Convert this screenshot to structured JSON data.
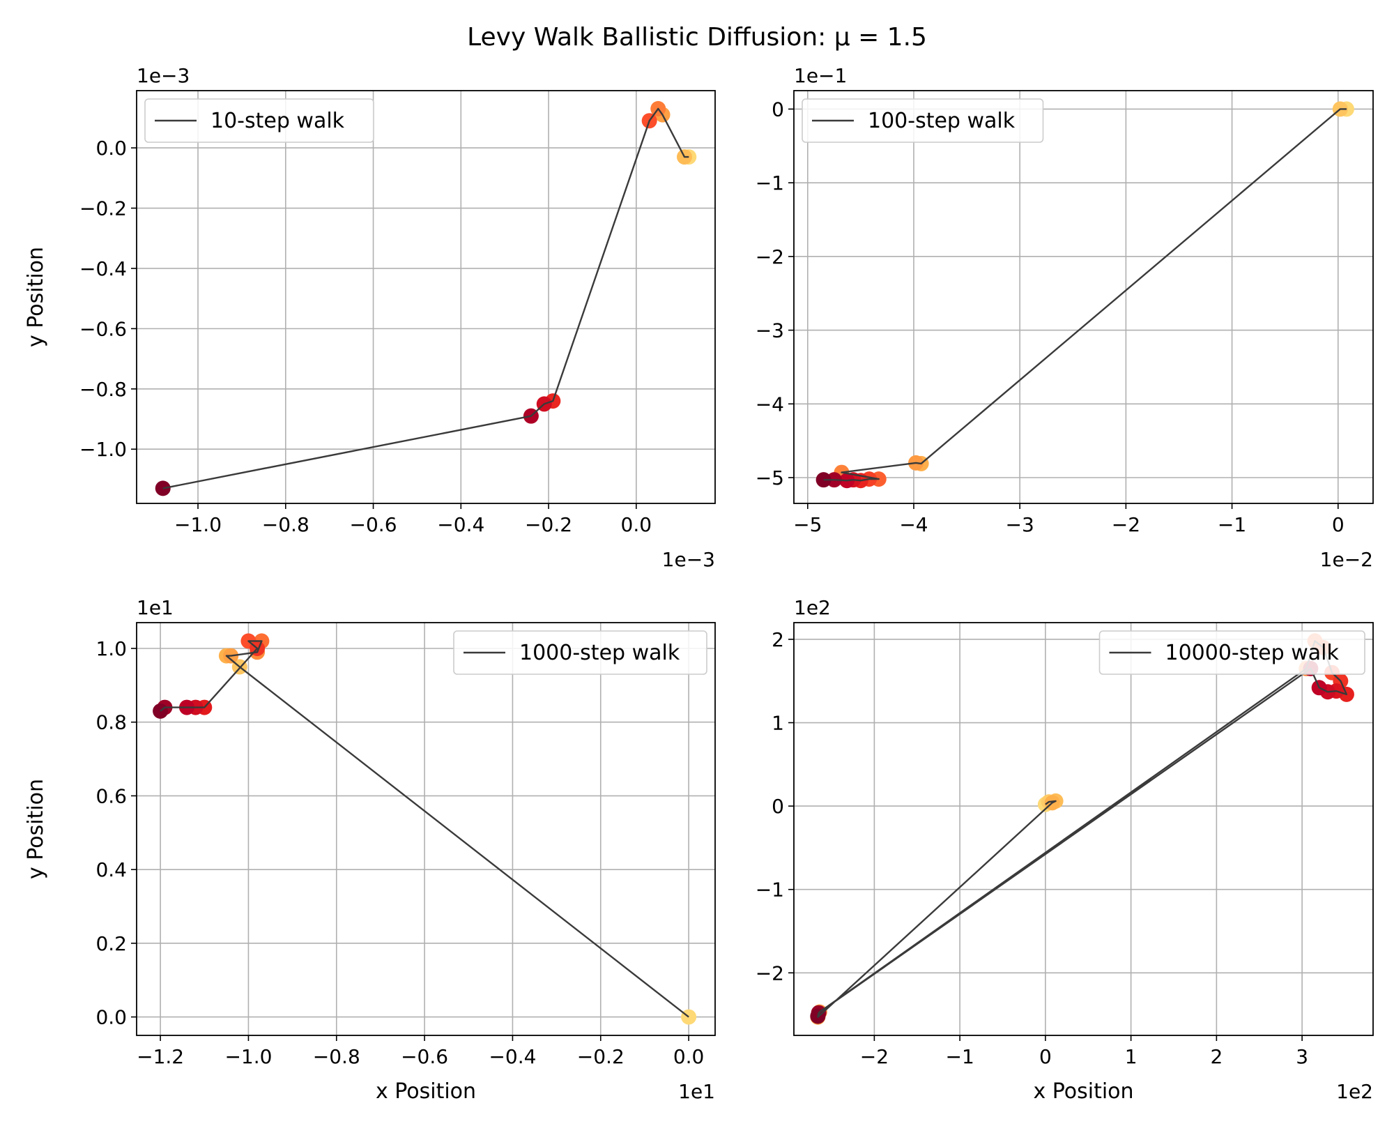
{
  "title": "Levy Walk Ballistic Diffusion: μ = 1.5",
  "colors": {
    "walk_line": "#3a3a3a",
    "grid": "#b0b0b0",
    "cmap": [
      "#fed976",
      "#feb24c",
      "#fd8d3c",
      "#fc4e2a",
      "#e31a1c",
      "#bd0026",
      "#800026"
    ]
  },
  "chart_data": [
    {
      "type": "line",
      "legend": "10-step walk",
      "legend_loc": "upper left",
      "grid": true,
      "x_offset_text": "1e−3",
      "y_offset_text": "1e−3",
      "xlabel": "",
      "ylabel": "y Position",
      "xlim": [
        -1.14,
        0.18
      ],
      "ylim": [
        -1.18,
        0.19
      ],
      "xticks": [
        -1.0,
        -0.8,
        -0.6,
        -0.4,
        -0.2,
        0.0
      ],
      "xtick_labels": [
        "−1.0",
        "−0.8",
        "−0.6",
        "−0.4",
        "−0.2",
        "0.0"
      ],
      "yticks": [
        0.0,
        -0.2,
        -0.4,
        -0.6,
        -0.8,
        -1.0
      ],
      "ytick_labels": [
        "0.0",
        "−0.2",
        "−0.4",
        "−0.6",
        "−0.8",
        "−1.0"
      ],
      "x": [
        0.12,
        0.11,
        0.06,
        0.05,
        0.03,
        -0.19,
        -0.21,
        -0.24,
        -1.08
      ],
      "y": [
        -0.03,
        -0.03,
        0.11,
        0.13,
        0.09,
        -0.84,
        -0.85,
        -0.89,
        -1.13
      ]
    },
    {
      "type": "line",
      "legend": "100-step walk",
      "legend_loc": "upper left",
      "grid": true,
      "x_offset_text": "1e−2",
      "y_offset_text": "1e−1",
      "xlabel": "",
      "ylabel": "",
      "xlim": [
        -5.13,
        0.33
      ],
      "ylim": [
        -5.35,
        0.25
      ],
      "xticks": [
        -5,
        -4,
        -3,
        -2,
        -1,
        0
      ],
      "xtick_labels": [
        "−5",
        "−4",
        "−3",
        "−2",
        "−1",
        "0"
      ],
      "yticks": [
        0,
        -1,
        -2,
        -3,
        -4,
        -5
      ],
      "ytick_labels": [
        "0",
        "−1",
        "−2",
        "−3",
        "−4",
        "−5"
      ],
      "x": [
        0.08,
        0.02,
        -3.93,
        -3.98,
        -4.68,
        -4.33,
        -4.42,
        -4.5,
        -4.57,
        -4.63,
        -4.75,
        -4.85
      ],
      "y": [
        0.0,
        0.0,
        -4.81,
        -4.8,
        -4.93,
        -5.02,
        -5.02,
        -5.04,
        -5.03,
        -5.04,
        -5.03,
        -5.03
      ]
    },
    {
      "type": "line",
      "legend": "1000-step walk",
      "legend_loc": "upper right",
      "grid": true,
      "x_offset_text": "1e1",
      "y_offset_text": "1e1",
      "xlabel": "x Position",
      "ylabel": "y Position",
      "xlim": [
        -1.254,
        0.06
      ],
      "ylim": [
        -0.05,
        1.07
      ],
      "xticks": [
        -1.2,
        -1.0,
        -0.8,
        -0.6,
        -0.4,
        -0.2,
        0.0
      ],
      "xtick_labels": [
        "−1.2",
        "−1.0",
        "−0.8",
        "−0.6",
        "−0.4",
        "−0.2",
        "0.0"
      ],
      "yticks": [
        0.0,
        0.2,
        0.4,
        0.6,
        0.8,
        1.0
      ],
      "ytick_labels": [
        "0.0",
        "0.2",
        "0.4",
        "0.6",
        "0.8",
        "1.0"
      ],
      "x": [
        0.0,
        -1.02,
        -1.05,
        -1.04,
        -0.98,
        -0.97,
        -1.0,
        -0.98,
        -1.1,
        -1.12,
        -1.14,
        -1.19,
        -1.2
      ],
      "y": [
        0.0,
        0.95,
        0.98,
        0.98,
        0.99,
        1.02,
        1.02,
        1.0,
        0.84,
        0.84,
        0.84,
        0.84,
        0.83
      ]
    },
    {
      "type": "line",
      "legend": "10000-step walk",
      "legend_loc": "upper right",
      "grid": true,
      "x_offset_text": "1e2",
      "y_offset_text": "1e2",
      "xlabel": "x Position",
      "ylabel": "",
      "xlim": [
        -2.94,
        3.83
      ],
      "ylim": [
        -2.75,
        2.2
      ],
      "xticks": [
        -2,
        -1,
        0,
        1,
        2,
        3
      ],
      "xtick_labels": [
        "−2",
        "−1",
        "0",
        "1",
        "2",
        "3"
      ],
      "yticks": [
        -2,
        -1,
        0,
        1,
        2
      ],
      "ytick_labels": [
        "−2",
        "−1",
        "0",
        "1",
        "2"
      ],
      "x": [
        0.0,
        0.04,
        0.12,
        0.08,
        -2.66,
        -2.64,
        3.05,
        3.15,
        3.25,
        3.35,
        3.45,
        3.52,
        3.4,
        3.3,
        3.2,
        3.1,
        -2.65,
        -2.66
      ],
      "y": [
        0.02,
        0.05,
        0.06,
        0.04,
        -2.53,
        -2.47,
        1.65,
        1.98,
        1.9,
        1.6,
        1.5,
        1.34,
        1.38,
        1.37,
        1.42,
        1.65,
        -2.48,
        -2.52
      ]
    }
  ]
}
